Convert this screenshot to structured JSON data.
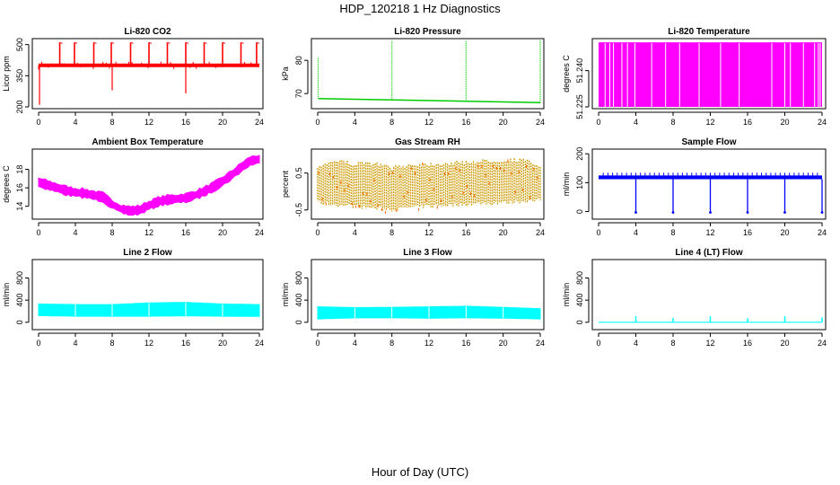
{
  "figure": {
    "title": "HDP_120218  1 Hz Diagnostics",
    "xlabel": "Hour of Day (UTC)"
  },
  "chart_data": [
    {
      "id": "co2",
      "type": "line",
      "title": "Li-820 CO2",
      "ylabel": "Licor ppm",
      "color": "#ff0000",
      "xlim": [
        0,
        24
      ],
      "ylim": [
        200,
        520
      ],
      "xticks": [
        0,
        4,
        8,
        12,
        16,
        20,
        24
      ],
      "yticks": [
        200,
        350,
        500
      ],
      "baseline": 400,
      "band": 10,
      "spikes": [
        {
          "x": 2.3,
          "y": 510
        },
        {
          "x": 3.9,
          "y": 510
        },
        {
          "x": 6.0,
          "y": 510
        },
        {
          "x": 7.9,
          "y": 510
        },
        {
          "x": 10.0,
          "y": 510
        },
        {
          "x": 12.0,
          "y": 510
        },
        {
          "x": 14.0,
          "y": 510
        },
        {
          "x": 16.0,
          "y": 510
        },
        {
          "x": 18.0,
          "y": 510
        },
        {
          "x": 20.0,
          "y": 510
        },
        {
          "x": 22.0,
          "y": 510
        },
        {
          "x": 23.7,
          "y": 510
        }
      ],
      "dips": [
        {
          "x": 0.1,
          "y": 210
        },
        {
          "x": 8.0,
          "y": 280
        },
        {
          "x": 16.0,
          "y": 265
        }
      ]
    },
    {
      "id": "pressure",
      "type": "line",
      "title": "Li-820 Pressure",
      "ylabel": "kPa",
      "color": "#00cc00",
      "xlim": [
        0,
        24
      ],
      "ylim": [
        66,
        86
      ],
      "xticks": [
        0,
        4,
        8,
        12,
        16,
        20,
        24
      ],
      "yticks": [
        70,
        80
      ],
      "start": 68.5,
      "end": 67.3,
      "spikes": [
        {
          "x": 0.05,
          "y": 81
        },
        {
          "x": 8.0,
          "y": 86
        },
        {
          "x": 16.0,
          "y": 86
        },
        {
          "x": 24.0,
          "y": 86
        }
      ]
    },
    {
      "id": "temperature",
      "type": "bar",
      "title": "Li-820 Temperature",
      "ylabel": "degrees C",
      "color": "#ff00ff",
      "xlim": [
        0,
        24
      ],
      "ylim": [
        51.225,
        51.2525
      ],
      "xticks": [
        0,
        4,
        8,
        12,
        16,
        20,
        24
      ],
      "yticks": [
        51.225,
        51.24
      ],
      "ytick_labels": [
        "51.225",
        "51.240"
      ],
      "low": 51.225,
      "high": 51.2517,
      "gaps": [
        0.7,
        1.2,
        1.6,
        2.5,
        3.1,
        3.9,
        5.7,
        7.2,
        8.7,
        10.8,
        13.1,
        15.1,
        18.6,
        20.0,
        20.6,
        22.0,
        23.2,
        23.6,
        23.8
      ]
    },
    {
      "id": "ambient",
      "type": "area",
      "title": "Ambient Box Temperature",
      "ylabel": "degrees C",
      "color": "#ff00ff",
      "xlim": [
        0,
        24
      ],
      "ylim": [
        12.8,
        20.0
      ],
      "xticks": [
        0,
        4,
        8,
        12,
        16,
        20,
        24
      ],
      "yticks": [
        14,
        16,
        18
      ],
      "x": [
        0,
        1,
        2,
        3,
        4,
        5,
        6,
        7,
        8,
        9,
        10,
        11,
        12,
        13,
        14,
        15,
        16,
        17,
        18,
        19,
        20,
        21,
        22,
        23,
        24
      ],
      "values": [
        16.6,
        16.3,
        16.0,
        15.7,
        15.5,
        15.4,
        15.2,
        15.0,
        14.2,
        13.7,
        13.5,
        13.6,
        14.1,
        14.5,
        14.7,
        14.8,
        14.9,
        15.2,
        15.6,
        16.1,
        16.7,
        17.4,
        18.2,
        18.9,
        19.1
      ],
      "half_width": 0.45
    },
    {
      "id": "rh",
      "type": "scatter",
      "title": "Gas Stream RH",
      "ylabel": "percent",
      "color": "#cc9900",
      "color2": "#ff6600",
      "xlim": [
        0,
        24
      ],
      "ylim": [
        -0.7,
        1.1
      ],
      "xticks": [
        0,
        4,
        8,
        12,
        16,
        20,
        24
      ],
      "yticks": [
        -0.5,
        0.5
      ],
      "ytick_labels": [
        "-0.5",
        "0.5"
      ],
      "x": [
        0,
        2,
        4,
        6,
        8,
        10,
        12,
        14,
        16,
        18,
        20,
        22,
        24
      ],
      "upper": [
        0.75,
        0.9,
        0.8,
        0.82,
        0.7,
        0.78,
        0.8,
        0.82,
        0.85,
        0.88,
        0.9,
        0.92,
        0.75
      ],
      "lower": [
        -0.35,
        -0.42,
        -0.45,
        -0.5,
        -0.55,
        -0.48,
        -0.45,
        -0.42,
        -0.4,
        -0.38,
        -0.35,
        -0.32,
        -0.3
      ]
    },
    {
      "id": "sample",
      "type": "line",
      "title": "Sample Flow",
      "ylabel": "ml/min",
      "color": "#0000ff",
      "xlim": [
        0,
        24
      ],
      "ylim": [
        -20,
        210
      ],
      "xticks": [
        0,
        4,
        8,
        12,
        16,
        20,
        24
      ],
      "yticks": [
        0,
        100,
        200
      ],
      "base_low": 112,
      "base_high": 125,
      "dips": [
        4,
        8,
        12,
        16,
        20,
        24
      ]
    },
    {
      "id": "line2",
      "type": "area",
      "title": "Line 2 Flow",
      "ylabel": "ml/min",
      "color": "#00ffff",
      "xlim": [
        0,
        24
      ],
      "ylim": [
        -100,
        1100
      ],
      "xticks": [
        0,
        4,
        8,
        12,
        16,
        20,
        24
      ],
      "yticks": [
        0,
        400,
        800
      ],
      "x": [
        0,
        4,
        8,
        12,
        16,
        20,
        24
      ],
      "upper": [
        330,
        320,
        320,
        350,
        360,
        330,
        320
      ],
      "lower": [
        120,
        110,
        110,
        110,
        115,
        110,
        105
      ]
    },
    {
      "id": "line3",
      "type": "area",
      "title": "Line 3 Flow",
      "ylabel": "ml/min",
      "color": "#00ffff",
      "xlim": [
        0,
        24
      ],
      "ylim": [
        -100,
        1100
      ],
      "xticks": [
        0,
        4,
        8,
        12,
        16,
        20,
        24
      ],
      "yticks": [
        0,
        400,
        800
      ],
      "x": [
        0,
        4,
        8,
        12,
        16,
        20,
        24
      ],
      "upper": [
        280,
        265,
        270,
        280,
        290,
        270,
        245
      ],
      "lower": [
        60,
        80,
        80,
        75,
        80,
        75,
        60
      ]
    },
    {
      "id": "line4",
      "type": "line",
      "title": "Line 4 (LT) Flow",
      "ylabel": "ml/min",
      "color": "#00ffff",
      "xlim": [
        0,
        24
      ],
      "ylim": [
        -100,
        1100
      ],
      "xticks": [
        0,
        4,
        8,
        12,
        16,
        20,
        24
      ],
      "yticks": [
        0,
        400,
        800
      ],
      "baseline": 0,
      "spikes": [
        {
          "x": 4,
          "y": 110
        },
        {
          "x": 8,
          "y": 80
        },
        {
          "x": 12,
          "y": 110
        },
        {
          "x": 16,
          "y": 70
        },
        {
          "x": 20,
          "y": 110
        },
        {
          "x": 24,
          "y": 90
        }
      ]
    }
  ]
}
